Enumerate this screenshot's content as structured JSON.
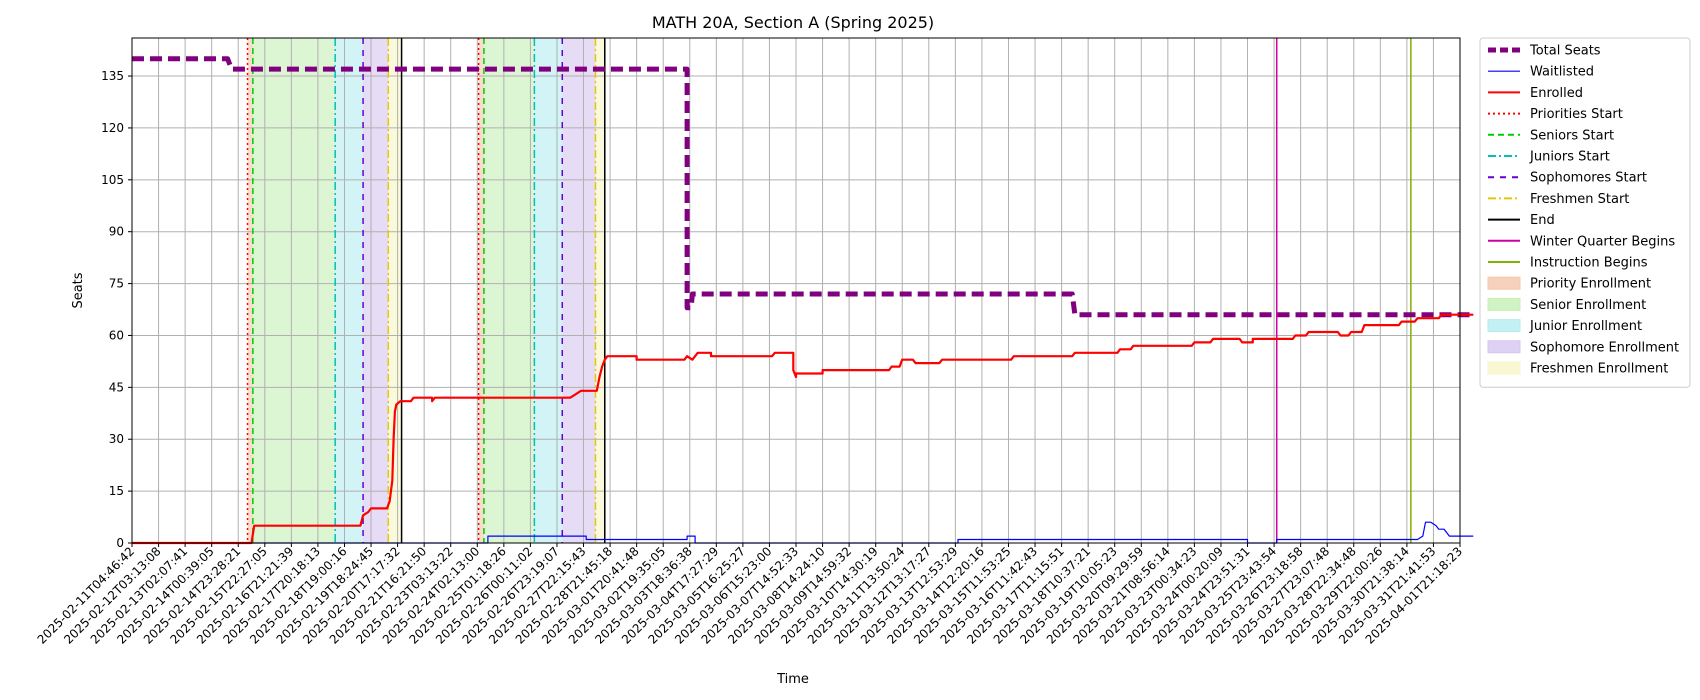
{
  "chart_data": {
    "type": "line",
    "title": "MATH 20A, Section A (Spring 2025)",
    "xlabel": "Time",
    "ylabel": "Seats",
    "ylim": [
      0,
      146
    ],
    "yticks": [
      0,
      15,
      30,
      45,
      60,
      75,
      90,
      105,
      120,
      135
    ],
    "grid": true,
    "legend_position": "outside-right",
    "x_tick_labels": [
      "2025-02-11T04:46:42",
      "2025-02-12T03:13:08",
      "2025-02-13T02:07:41",
      "2025-02-14T00:39:05",
      "2025-02-14T23:28:21",
      "2025-02-15T22:27:05",
      "2025-02-16T21:21:39",
      "2025-02-17T20:18:13",
      "2025-02-18T19:00:16",
      "2025-02-19T18:24:45",
      "2025-02-20T17:17:32",
      "2025-02-21T16:21:50",
      "2025-02-23T03:13:22",
      "2025-02-24T02:13:00",
      "2025-02-25T01:18:26",
      "2025-02-26T00:11:02",
      "2025-02-26T23:19:07",
      "2025-02-27T22:15:43",
      "2025-02-28T21:45:18",
      "2025-03-01T20:41:48",
      "2025-03-02T19:35:05",
      "2025-03-03T18:36:38",
      "2025-03-04T17:27:29",
      "2025-03-05T16:25:27",
      "2025-03-06T15:23:00",
      "2025-03-07T14:52:33",
      "2025-03-08T14:24:10",
      "2025-03-09T14:59:32",
      "2025-03-10T14:30:19",
      "2025-03-11T13:50:24",
      "2025-03-12T13:17:27",
      "2025-03-13T12:53:29",
      "2025-03-14T12:20:16",
      "2025-03-15T11:53:25",
      "2025-03-16T11:42:43",
      "2025-03-17T11:15:51",
      "2025-03-18T10:37:21",
      "2025-03-19T10:05:23",
      "2025-03-20T09:29:59",
      "2025-03-21T08:56:14",
      "2025-03-23T00:34:23",
      "2025-03-24T00:20:09",
      "2025-03-24T23:51:31",
      "2025-03-25T23:43:54",
      "2025-03-26T23:18:58",
      "2025-03-27T23:07:48",
      "2025-03-28T22:34:48",
      "2025-03-29T22:00:26",
      "2025-03-30T21:38:14",
      "2025-03-31T21:41:53",
      "2025-04-01T21:18:23"
    ],
    "series": [
      {
        "name": "Total Seats",
        "color": "#800080",
        "style": "dashed-thick",
        "points": [
          [
            0,
            140
          ],
          [
            3.6,
            140
          ],
          [
            3.75,
            137
          ],
          [
            20.9,
            137
          ],
          [
            20.9,
            68
          ],
          [
            21.05,
            68
          ],
          [
            21.1,
            72
          ],
          [
            35.4,
            72
          ],
          [
            35.5,
            66
          ],
          [
            50.5,
            66
          ]
        ]
      },
      {
        "name": "Waitlisted",
        "color": "#0000ff",
        "style": "solid-thin",
        "points": [
          [
            0,
            0
          ],
          [
            13.4,
            0
          ],
          [
            13.4,
            2
          ],
          [
            17.1,
            2
          ],
          [
            17.1,
            1
          ],
          [
            20.9,
            1
          ],
          [
            20.9,
            2
          ],
          [
            21.2,
            2
          ],
          [
            21.2,
            0
          ],
          [
            31.1,
            0
          ],
          [
            31.1,
            1
          ],
          [
            42,
            1
          ],
          [
            42,
            0
          ],
          [
            43.1,
            0
          ],
          [
            43.1,
            1
          ],
          [
            48.4,
            1
          ],
          [
            48.6,
            2
          ],
          [
            48.7,
            6
          ],
          [
            48.9,
            6
          ],
          [
            49.1,
            5
          ],
          [
            49.2,
            4
          ],
          [
            49.4,
            4
          ],
          [
            49.5,
            3
          ],
          [
            49.6,
            2
          ],
          [
            50.5,
            2
          ]
        ]
      },
      {
        "name": "Enrolled",
        "color": "#ff0000",
        "style": "solid",
        "points": [
          [
            0,
            0
          ],
          [
            4.5,
            0
          ],
          [
            4.6,
            5
          ],
          [
            8.6,
            5
          ],
          [
            8.7,
            8
          ],
          [
            8.9,
            9
          ],
          [
            9,
            10
          ],
          [
            9.6,
            10
          ],
          [
            9.7,
            12
          ],
          [
            9.8,
            18
          ],
          [
            9.85,
            30
          ],
          [
            9.9,
            38
          ],
          [
            9.95,
            40
          ],
          [
            10.1,
            41
          ],
          [
            10.5,
            41
          ],
          [
            10.6,
            42
          ],
          [
            11.3,
            42
          ],
          [
            11.3,
            41
          ],
          [
            11.4,
            42
          ],
          [
            16.5,
            42
          ],
          [
            16.7,
            43
          ],
          [
            16.9,
            44
          ],
          [
            17.5,
            44
          ],
          [
            17.6,
            48
          ],
          [
            17.7,
            51
          ],
          [
            17.8,
            53
          ],
          [
            17.9,
            54
          ],
          [
            19,
            54
          ],
          [
            19,
            53
          ],
          [
            20.8,
            53
          ],
          [
            20.9,
            54
          ],
          [
            21.1,
            53
          ],
          [
            21.3,
            55
          ],
          [
            21.8,
            55
          ],
          [
            21.8,
            54
          ],
          [
            24.1,
            54
          ],
          [
            24.2,
            55
          ],
          [
            24.9,
            55
          ],
          [
            24.9,
            50
          ],
          [
            25,
            48
          ],
          [
            25,
            49
          ],
          [
            26,
            49
          ],
          [
            26,
            50
          ],
          [
            28.5,
            50
          ],
          [
            28.6,
            51
          ],
          [
            28.9,
            51
          ],
          [
            29,
            53
          ],
          [
            29.4,
            53
          ],
          [
            29.5,
            52
          ],
          [
            30.4,
            52
          ],
          [
            30.5,
            53
          ],
          [
            33.1,
            53
          ],
          [
            33.2,
            54
          ],
          [
            35.4,
            54
          ],
          [
            35.5,
            55
          ],
          [
            37.1,
            55
          ],
          [
            37.2,
            56
          ],
          [
            37.6,
            56
          ],
          [
            37.7,
            57
          ],
          [
            39.9,
            57
          ],
          [
            40,
            58
          ],
          [
            40.6,
            58
          ],
          [
            40.7,
            59
          ],
          [
            41.7,
            59
          ],
          [
            41.8,
            58
          ],
          [
            42.2,
            58
          ],
          [
            42.2,
            59
          ],
          [
            43.7,
            59
          ],
          [
            43.8,
            60
          ],
          [
            44.2,
            60
          ],
          [
            44.3,
            61
          ],
          [
            45.4,
            61
          ],
          [
            45.5,
            60
          ],
          [
            45.8,
            60
          ],
          [
            45.9,
            61
          ],
          [
            46.3,
            61
          ],
          [
            46.4,
            63
          ],
          [
            47.7,
            63
          ],
          [
            47.8,
            64
          ],
          [
            48.3,
            64
          ],
          [
            48.4,
            65
          ],
          [
            49.2,
            65
          ],
          [
            49.3,
            66
          ],
          [
            50.5,
            66
          ]
        ]
      }
    ],
    "vertical_lines": [
      {
        "name": "Priorities Start",
        "color": "#ff0000",
        "style": "dotted",
        "x": [
          4.35,
          13.05
        ]
      },
      {
        "name": "Seniors Start",
        "color": "#00cc00",
        "style": "dashed",
        "x": [
          4.55,
          13.25
        ]
      },
      {
        "name": "Juniors Start",
        "color": "#00bfbf",
        "style": "dashdot",
        "x": [
          7.65,
          15.15
        ]
      },
      {
        "name": "Sophomores Start",
        "color": "#6600cc",
        "style": "dashed-sparse",
        "x": [
          8.7,
          16.2
        ]
      },
      {
        "name": "Freshmen Start",
        "color": "#e6c800",
        "style": "dashdot",
        "x": [
          9.65,
          17.45
        ]
      },
      {
        "name": "End",
        "color": "#000000",
        "style": "solid",
        "x": [
          10.15,
          17.8
        ]
      },
      {
        "name": "Winter Quarter Begins",
        "color": "#d000a0",
        "style": "solid",
        "x": [
          43.1
        ]
      },
      {
        "name": "Instruction Begins",
        "color": "#80b000",
        "style": "solid",
        "x": [
          48.15
        ]
      }
    ],
    "shaded_regions": [
      {
        "name": "Priority Enrollment",
        "color": "#f5c6aa",
        "ranges": [
          [
            4.35,
            4.55
          ],
          [
            13.05,
            13.25
          ]
        ]
      },
      {
        "name": "Senior Enrollment",
        "color": "#c5f0b5",
        "ranges": [
          [
            4.55,
            7.65
          ],
          [
            13.25,
            15.15
          ]
        ]
      },
      {
        "name": "Junior Enrollment",
        "color": "#b5ecf0",
        "ranges": [
          [
            7.65,
            8.7
          ],
          [
            15.15,
            16.2
          ]
        ]
      },
      {
        "name": "Sophomore Enrollment",
        "color": "#d6c5f0",
        "ranges": [
          [
            8.7,
            9.65
          ],
          [
            16.2,
            17.45
          ]
        ]
      },
      {
        "name": "Freshmen Enrollment",
        "color": "#f8f5c5",
        "ranges": [
          [
            9.65,
            10.15
          ],
          [
            17.45,
            17.8
          ]
        ]
      }
    ]
  }
}
